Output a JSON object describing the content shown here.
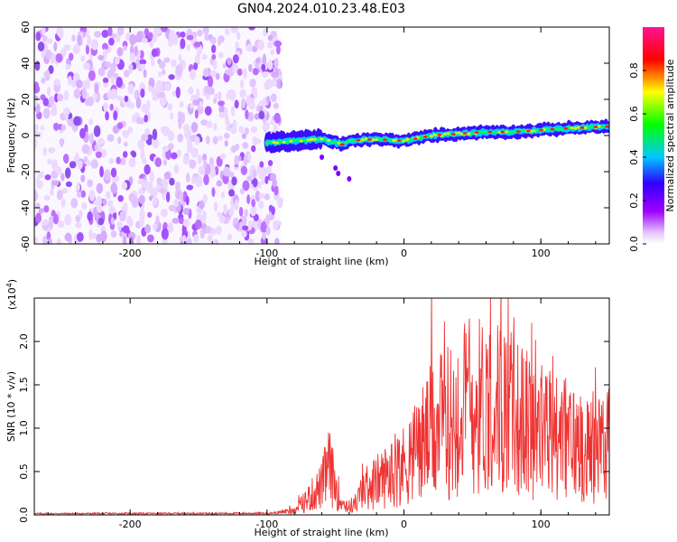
{
  "title": "GN04.2024.010.23.48.E03",
  "colors": {
    "trace": "#ee3333",
    "colormap": [
      "#ffffff",
      "#a000ff",
      "#3000ff",
      "#00c8ff",
      "#00ff00",
      "#ffff00",
      "#ff0000",
      "#ff1493"
    ]
  },
  "chart_data": [
    {
      "type": "heatmap",
      "title": "GN04.2024.010.23.48.E03",
      "xlabel": "Height of straight line (km)",
      "ylabel": "Frequency (Hz)",
      "xlim": [
        -270,
        150
      ],
      "ylim": [
        -60,
        60
      ],
      "x_ticks": [
        -200,
        -100,
        0,
        100
      ],
      "y_ticks": [
        -60,
        -40,
        -20,
        0,
        20,
        40,
        60
      ],
      "noise_region_x": [
        -270,
        -90
      ],
      "signal_ridge": {
        "x": [
          -100,
          -80,
          -60,
          -45,
          -40,
          -20,
          0,
          20,
          40,
          60,
          80,
          100,
          120,
          150
        ],
        "y": [
          -4,
          -3,
          -2,
          -5,
          -3,
          -2,
          -3,
          0,
          1,
          2,
          2,
          3,
          4,
          5
        ]
      },
      "colorbar": {
        "label": "Normalized spectral amplitude",
        "range": [
          0,
          1
        ],
        "ticks": [
          "0.0",
          "0.2",
          "0.4",
          "0.6",
          "0.8"
        ]
      }
    },
    {
      "type": "line",
      "xlabel": "Height of straight line (km)",
      "ylabel": "SNR (10 * v/v)",
      "exponent_label": "(x10",
      "exponent_power": "4",
      "exponent_close": ")",
      "xlim": [
        -270,
        150
      ],
      "ylim": [
        0,
        25000
      ],
      "x_ticks": [
        -200,
        -100,
        0,
        100
      ],
      "y_ticks": [
        {
          "value": 0,
          "label": "0.0"
        },
        {
          "value": 5000,
          "label": "0.5"
        },
        {
          "value": 10000,
          "label": "1.0"
        },
        {
          "value": 15000,
          "label": "1.5"
        },
        {
          "value": 20000,
          "label": "2.0"
        }
      ],
      "series": [
        {
          "envelope_x": [
            -270,
            -100,
            -80,
            -60,
            -55,
            -50,
            -45,
            -40,
            -35,
            -30,
            -25,
            -20,
            -10,
            0,
            10,
            20,
            30,
            40,
            50,
            60,
            70,
            80,
            90,
            100,
            110,
            120,
            130,
            140,
            150
          ],
          "envelope_y": [
            200,
            250,
            500,
            3500,
            6000,
            3500,
            1500,
            1000,
            1500,
            3000,
            3500,
            4000,
            5000,
            6000,
            8000,
            10000,
            11000,
            12000,
            13000,
            13500,
            13000,
            12000,
            11000,
            10000,
            9500,
            9000,
            8500,
            8500,
            8500
          ]
        }
      ]
    }
  ]
}
